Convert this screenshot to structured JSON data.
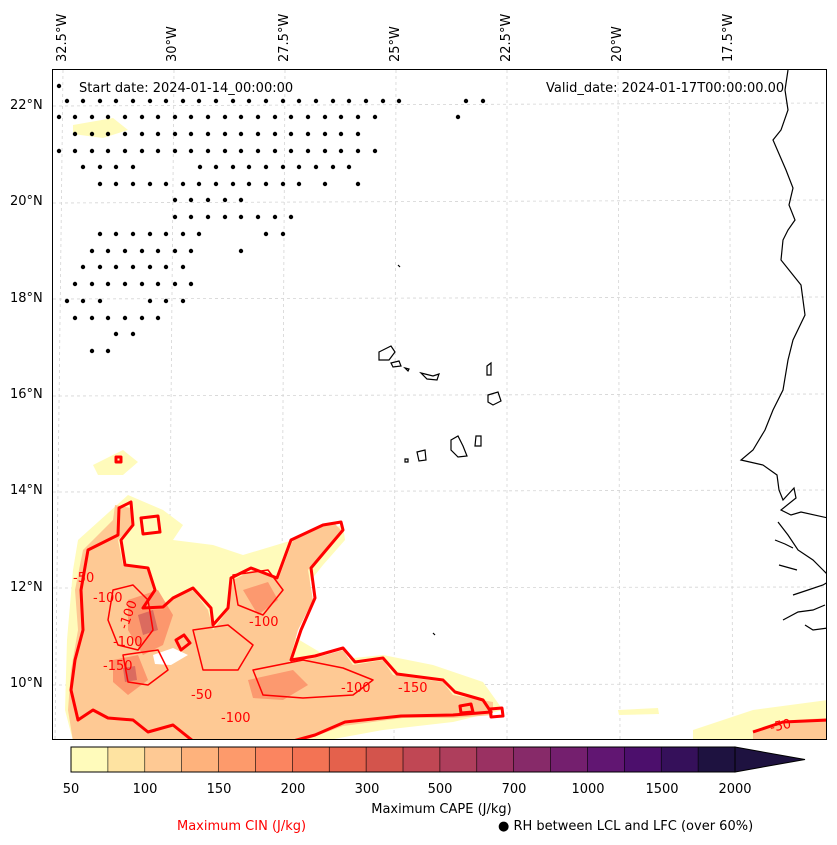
{
  "map": {
    "start_date": "Start date: 2024-01-14_00:00:00",
    "valid_date": "Valid_date: 2024-01-17T00:00:00.00",
    "longitude_labels": [
      "32.5°W",
      "30°W",
      "27.5°W",
      "25°W",
      "22.5°W",
      "20°W",
      "17.5°W"
    ],
    "latitude_labels": [
      "22°N",
      "20°N",
      "18°N",
      "16°N",
      "14°N",
      "12°N",
      "10°N"
    ],
    "extent": {
      "lon_min": -33.3,
      "lon_max": -16.0,
      "lat_min": 8.8,
      "lat_max": 22.8
    },
    "cin_contour_labels": [
      "-50",
      "-100",
      "-100",
      "-100",
      "-150",
      "-100",
      "-100",
      "-50",
      "-150",
      "-100",
      "-50"
    ],
    "colors": {
      "cin_line": "#ff0000",
      "coast": "#000000",
      "grid": "#cccccc"
    }
  },
  "colorbar": {
    "ticks": [
      "50",
      "100",
      "150",
      "200",
      "300",
      "500",
      "700",
      "1000",
      "1500",
      "2000"
    ],
    "colors": [
      "#fffbbb",
      "#fee3a1",
      "#fec994",
      "#feb27c",
      "#fd9a6b",
      "#fb8560",
      "#f37354",
      "#e4614c",
      "#d3544c",
      "#c04754",
      "#ae3e5c",
      "#9a3162",
      "#872a69",
      "#741f6e",
      "#611672",
      "#4c0f6c",
      "#35105a",
      "#1e1240"
    ],
    "label": "Maximum CAPE (J/kg)"
  },
  "legend": {
    "cin": "Maximum CIN (J/kg)",
    "rh": "● RH between LCL and LFC (over 60%)"
  }
}
